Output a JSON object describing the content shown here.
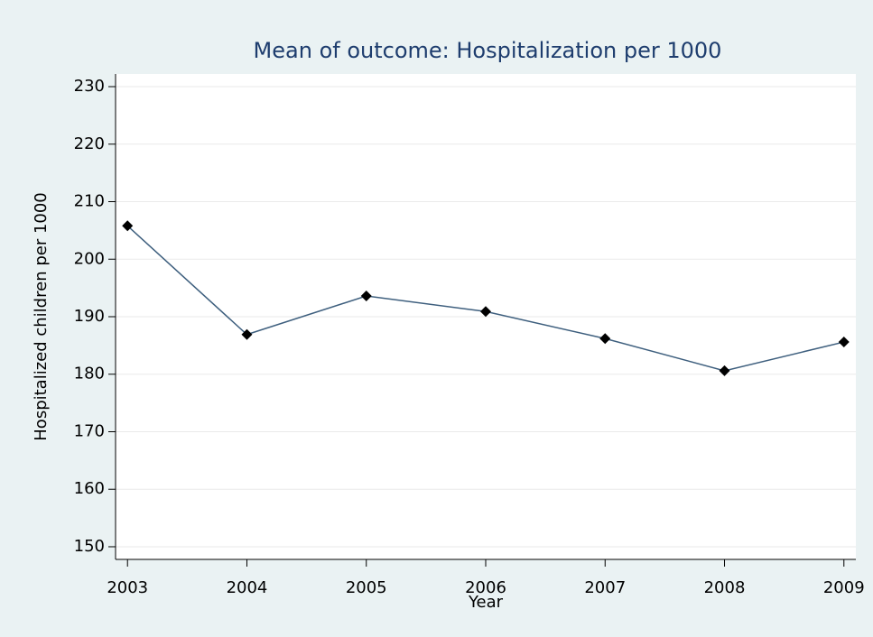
{
  "chart_data": {
    "type": "line",
    "title": "Mean of outcome: Hospitalization per 1000",
    "x_label": "Year",
    "y_label": "Hospitalized children per 1000",
    "x": [
      2003,
      2004,
      2005,
      2006,
      2007,
      2008,
      2009
    ],
    "series": [
      {
        "name": "Hospitalized children per 1000",
        "color": "#3e5f7e",
        "marker_color": "#000000",
        "values": [
          205.8,
          186.9,
          193.6,
          190.9,
          186.2,
          180.6,
          185.6
        ]
      }
    ],
    "xlim": [
      2002.9,
      2009.1
    ],
    "xticks": [
      2003,
      2004,
      2005,
      2006,
      2007,
      2008,
      2009
    ],
    "ylim": [
      147.8,
      232.2
    ],
    "yticks": [
      150,
      160,
      170,
      180,
      190,
      200,
      210,
      220,
      230
    ],
    "grid": true
  }
}
